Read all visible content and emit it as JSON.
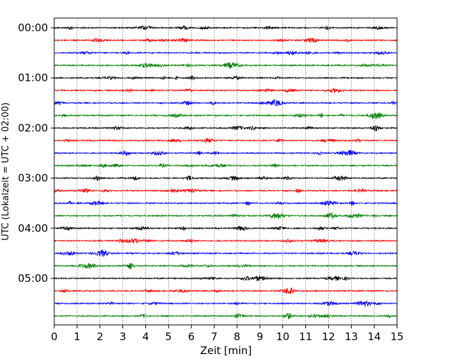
{
  "chart_data": {
    "type": "line",
    "xlabel": "Zeit  [min]",
    "ylabel": "UTC (Lokalzeit = UTC + 02:00)",
    "xlim": [
      0,
      15
    ],
    "x_ticks": [
      "0",
      "1",
      "2",
      "3",
      "4",
      "5",
      "6",
      "7",
      "8",
      "9",
      "10",
      "11",
      "12",
      "13",
      "14",
      "15"
    ],
    "y_ticks": [
      {
        "label": "00:00",
        "trace_index": 0
      },
      {
        "label": "01:00",
        "trace_index": 4
      },
      {
        "label": "02:00",
        "trace_index": 8
      },
      {
        "label": "03:00",
        "trace_index": 12
      },
      {
        "label": "04:00",
        "trace_index": 16
      },
      {
        "label": "05:00",
        "trace_index": 20
      }
    ],
    "trace_count": 24,
    "trace_interval_min": 15,
    "color_cycle": [
      "#000000",
      "#ff0000",
      "#0000ff",
      "#008000"
    ],
    "vertical_grid": true,
    "grid_style": "dotted"
  }
}
